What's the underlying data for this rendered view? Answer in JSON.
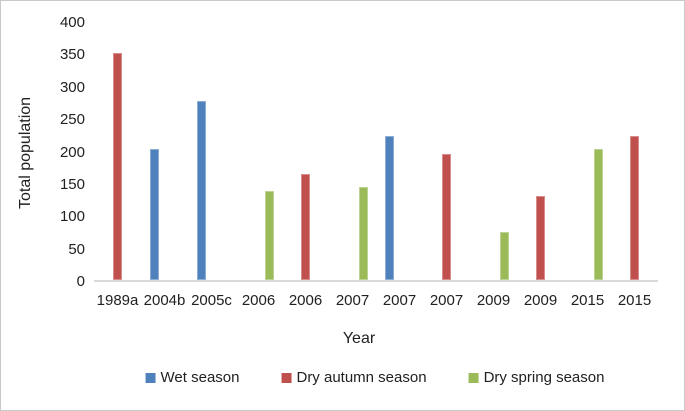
{
  "chart_data": {
    "type": "bar",
    "title": "",
    "xlabel": "Year",
    "ylabel": "Total population",
    "ylim": [
      0,
      400
    ],
    "ytick_step": 50,
    "yticks": [
      0,
      50,
      100,
      150,
      200,
      250,
      300,
      350,
      400
    ],
    "grid": false,
    "legend_position": "bottom",
    "categories": [
      "1989a",
      "2004b",
      "2005c",
      "2006",
      "2006",
      "2007",
      "2007",
      "2007",
      "2009",
      "2009",
      "2015",
      "2015"
    ],
    "series": [
      {
        "name": "Wet season",
        "color": "#4F81BD",
        "values": [
          0,
          203,
          276,
          0,
          0,
          0,
          223,
          0,
          0,
          0,
          0,
          0
        ]
      },
      {
        "name": "Dry autumn season",
        "color": "#C0504D",
        "values": [
          350,
          0,
          0,
          0,
          164,
          0,
          0,
          195,
          0,
          129,
          0,
          222
        ]
      },
      {
        "name": "Dry spring season",
        "color": "#9BBB59",
        "values": [
          0,
          0,
          0,
          138,
          0,
          143,
          0,
          0,
          74,
          0,
          202,
          0
        ]
      }
    ]
  },
  "colors": {
    "axis_line": "#D9D9D9",
    "text": "#212121",
    "frame_border": "#C9C9C9",
    "background": "#FFFFFF"
  }
}
